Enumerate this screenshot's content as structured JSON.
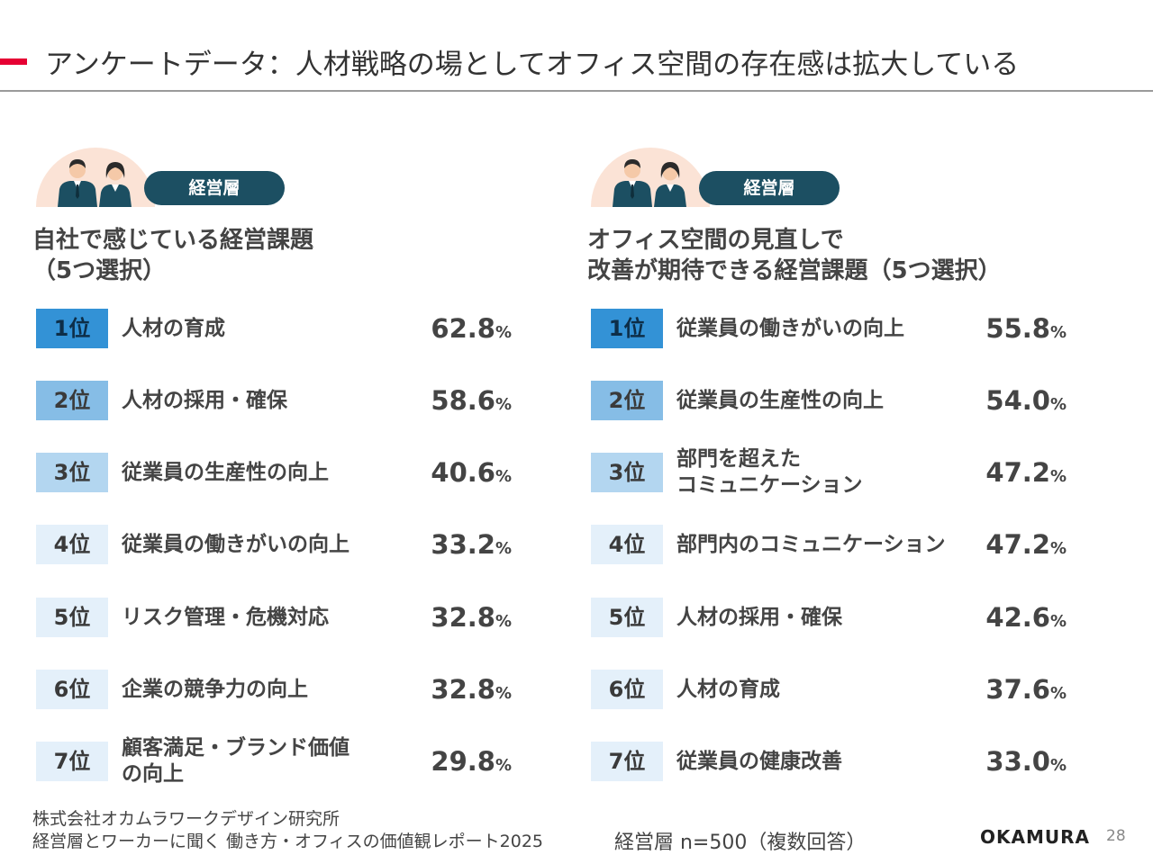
{
  "title": "アンケートデータ：人材戦略の場としてオフィス空間の存在感は拡大している",
  "left": {
    "tag": "経営層",
    "heading_line1": "自社で感じている経営課題",
    "heading_line2": "（5つ選択）",
    "rows": [
      {
        "rank": "1位",
        "line1": "人材の育成",
        "line2": "",
        "value": "62.8",
        "unit": "%"
      },
      {
        "rank": "2位",
        "line1": "人材の採用・確保",
        "line2": "",
        "value": "58.6",
        "unit": "%"
      },
      {
        "rank": "3位",
        "line1": "従業員の生産性の向上",
        "line2": "",
        "value": "40.6",
        "unit": "%"
      },
      {
        "rank": "4位",
        "line1": "従業員の働きがいの向上",
        "line2": "",
        "value": "33.2",
        "unit": "%"
      },
      {
        "rank": "5位",
        "line1": "リスク管理・危機対応",
        "line2": "",
        "value": "32.8",
        "unit": "%"
      },
      {
        "rank": "6位",
        "line1": "企業の競争力の向上",
        "line2": "",
        "value": "32.8",
        "unit": "%"
      },
      {
        "rank": "7位",
        "line1": "顧客満足・ブランド価値",
        "line2": "の向上",
        "value": "29.8",
        "unit": "%"
      }
    ]
  },
  "right": {
    "tag": "経営層",
    "heading_line1": "オフィス空間の見直しで",
    "heading_line2": "改善が期待できる経営課題（5つ選択）",
    "rows": [
      {
        "rank": "1位",
        "line1": "従業員の働きがいの向上",
        "line2": "",
        "value": "55.8",
        "unit": "%"
      },
      {
        "rank": "2位",
        "line1": "従業員の生産性の向上",
        "line2": "",
        "value": "54.0",
        "unit": "%"
      },
      {
        "rank": "3位",
        "line1": "部門を超えた",
        "line2": "コミュニケーション",
        "value": "47.2",
        "unit": "%"
      },
      {
        "rank": "4位",
        "line1": "部門内のコミュニケーション",
        "line2": "",
        "value": "47.2",
        "unit": "%"
      },
      {
        "rank": "5位",
        "line1": "人材の採用・確保",
        "line2": "",
        "value": "42.6",
        "unit": "%"
      },
      {
        "rank": "6位",
        "line1": "人材の育成",
        "line2": "",
        "value": "37.6",
        "unit": "%"
      },
      {
        "rank": "7位",
        "line1": "従業員の健康改善",
        "line2": "",
        "value": "33.0",
        "unit": "%"
      }
    ]
  },
  "footer": {
    "source_line1": "株式会社オカムラワークデザイン研究所",
    "source_line2": "経営層とワーカーに聞く 働き方・オフィスの価値観レポート2025",
    "sample": "経営層 n=500（複数回答）",
    "brand": "OKAMURA",
    "page": "28"
  },
  "colors": {
    "accent": "#e60033",
    "tag": "#1c4f62",
    "rank1": "#3392d6",
    "rank2": "#86bde6",
    "rank3": "#b3d6f0",
    "rank_rest": "#e4f0fa"
  }
}
